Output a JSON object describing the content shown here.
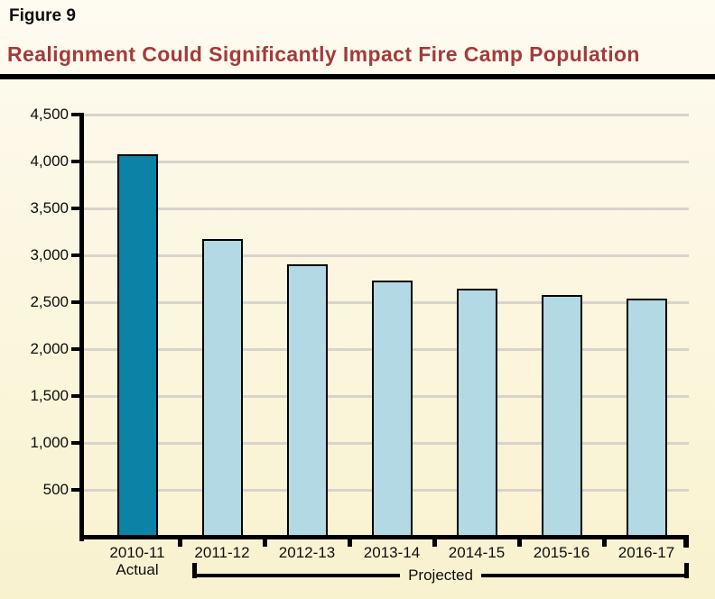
{
  "header": {
    "figure_label": "Figure 9",
    "title": "Realignment Could Significantly Impact Fire Camp Population",
    "title_color": "#A23B3B"
  },
  "chart_data": {
    "type": "bar",
    "title": "Realignment Could Significantly Impact Fire Camp Population",
    "categories": [
      "2010-11",
      "2011-12",
      "2012-13",
      "2013-14",
      "2014-15",
      "2015-16",
      "2016-17"
    ],
    "category_sublabels": [
      "Actual",
      "",
      "",
      "",
      "",
      "",
      ""
    ],
    "values": [
      4075,
      3170,
      2900,
      2730,
      2640,
      2580,
      2540
    ],
    "series_note": "First bar is actual population; remaining six bars are projections",
    "xlabel": "",
    "ylabel": "",
    "ylim": [
      0,
      4500
    ],
    "ytick_step": 500,
    "ytick_labels": [
      "500",
      "1,000",
      "1,500",
      "2,000",
      "2,500",
      "3,000",
      "3,500",
      "4,000",
      "4,500"
    ],
    "grid": true,
    "legend": "none",
    "group_annotation": {
      "label": "Projected",
      "from": "2011-12",
      "to": "2016-17"
    },
    "colors": {
      "actual_bar": "#0C82A6",
      "projected_bar": "#B3D9E4",
      "bar_border": "#000000",
      "gridline": "#D6D4CB",
      "axis": "#000000",
      "background_top": "#FEFBF1",
      "background_bottom": "#F9F2CF"
    }
  }
}
